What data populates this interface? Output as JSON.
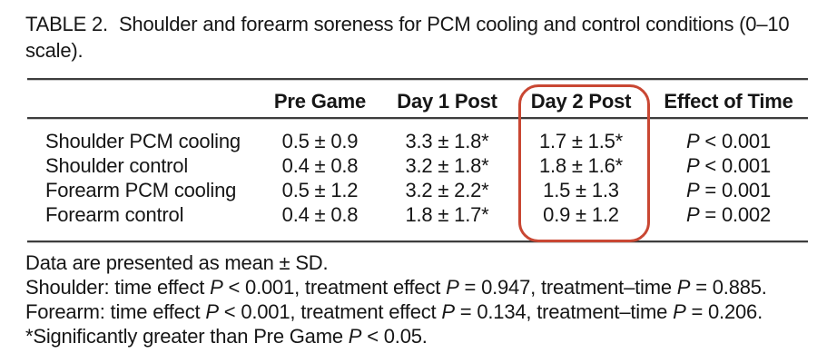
{
  "title": {
    "label": "TABLE 2.",
    "text": "Shoulder and forearm soreness for PCM cooling and control conditions (0–10 scale)."
  },
  "table": {
    "headers": [
      "",
      "Pre Game",
      "Day 1 Post",
      "Day 2 Post",
      "Effect of Time"
    ],
    "rows": [
      {
        "label": "Shoulder PCM cooling",
        "values": [
          "0.5 ± 0.9",
          "3.3 ± 1.8*",
          "1.7 ± 1.5*"
        ],
        "effect": {
          "p": "P",
          "rest": " < 0.001"
        }
      },
      {
        "label": "Shoulder control",
        "values": [
          "0.4 ± 0.8",
          "3.2 ± 1.8*",
          "1.8 ± 1.6*"
        ],
        "effect": {
          "p": "P",
          "rest": " < 0.001"
        }
      },
      {
        "label": "Forearm PCM cooling",
        "values": [
          "0.5 ± 1.2",
          "3.2 ± 2.2*",
          "1.5 ± 1.3"
        ],
        "effect": {
          "p": "P",
          "rest": " = 0.001"
        }
      },
      {
        "label": "Forearm control",
        "values": [
          "0.4 ± 0.8",
          "1.8 ± 1.7*",
          "0.9 ± 1.2"
        ],
        "effect": {
          "p": "P",
          "rest": " = 0.002"
        }
      }
    ]
  },
  "annotation": {
    "shape": "hand-drawn rounded rectangle",
    "target": "Day 2 Post column",
    "color": "#c94733"
  },
  "footnotes": [
    [
      {
        "t": "Data are presented as mean ± SD."
      }
    ],
    [
      {
        "t": "Shoulder: time effect "
      },
      {
        "t": "P",
        "i": true
      },
      {
        "t": " < 0.001, treatment effect "
      },
      {
        "t": "P",
        "i": true
      },
      {
        "t": " = 0.947, treatment–time "
      },
      {
        "t": "P",
        "i": true
      },
      {
        "t": " = 0.885."
      }
    ],
    [
      {
        "t": "Forearm: time effect "
      },
      {
        "t": "P",
        "i": true
      },
      {
        "t": " < 0.001, treatment effect "
      },
      {
        "t": "P",
        "i": true
      },
      {
        "t": " = 0.134, treatment–time "
      },
      {
        "t": "P",
        "i": true
      },
      {
        "t": " = 0.206."
      }
    ],
    [
      {
        "t": "*Significantly greater than Pre Game "
      },
      {
        "t": "P",
        "i": true
      },
      {
        "t": " < 0.05."
      }
    ]
  ]
}
